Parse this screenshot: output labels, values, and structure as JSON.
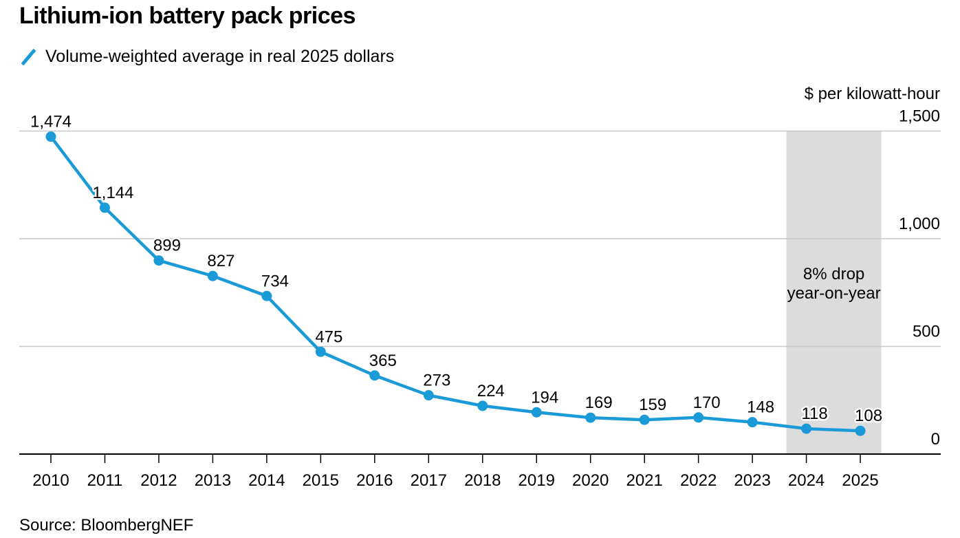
{
  "header": {
    "title": "Lithium-ion battery pack prices",
    "legend_label": "Volume-weighted average in real 2025 dollars"
  },
  "footer": {
    "source": "Source: BloombergNEF"
  },
  "colors": {
    "line": "#1a9bd7",
    "highlight_band": "#dcdcdc",
    "gridline": "#c8c8c8",
    "axis": "#000000"
  },
  "chart_data": {
    "type": "line",
    "title": "Lithium-ion battery pack prices",
    "subtitle": "Volume-weighted average in real 2025 dollars",
    "xlabel": "",
    "ylabel": "$ per kilowatt-hour",
    "ylim": [
      0,
      1500
    ],
    "yticks": [
      0,
      500,
      1000,
      1500
    ],
    "ytick_labels": [
      "0",
      "500",
      "1,000",
      "1,500"
    ],
    "y_axis_position": "right",
    "grid": true,
    "x": [
      "2010",
      "2011",
      "2012",
      "2013",
      "2014",
      "2015",
      "2016",
      "2017",
      "2018",
      "2019",
      "2020",
      "2021",
      "2022",
      "2023",
      "2024",
      "2025"
    ],
    "series": [
      {
        "name": "Volume-weighted average in real 2025 dollars",
        "values": [
          1474,
          1144,
          899,
          827,
          734,
          475,
          365,
          273,
          224,
          194,
          169,
          159,
          170,
          148,
          118,
          108
        ],
        "labels": [
          "1,474",
          "1,144",
          "899",
          "827",
          "734",
          "475",
          "365",
          "273",
          "224",
          "194",
          "169",
          "159",
          "170",
          "148",
          "118",
          "108"
        ]
      }
    ],
    "highlight": {
      "from": "2024",
      "to": "2025",
      "annotation": [
        "8% drop",
        "year-on-year"
      ]
    },
    "legend": "top-left",
    "source": "Source: BloombergNEF"
  }
}
